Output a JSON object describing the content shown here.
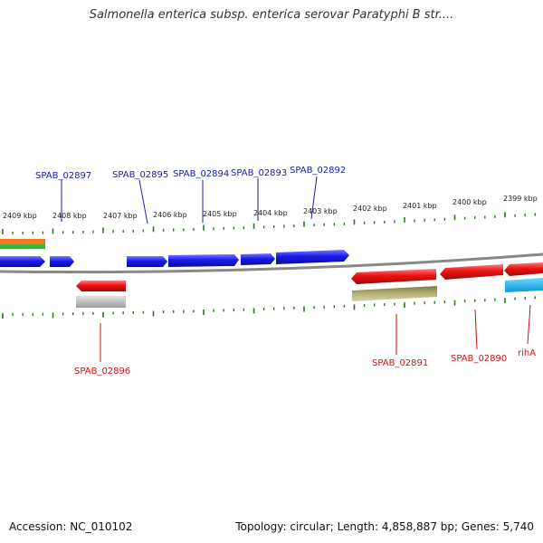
{
  "title": "Salmonella enterica subsp. enterica serovar Paratyphi B str....",
  "footer": {
    "accession": "Accession: NC_010102",
    "summary": "Topology: circular; Length: 4,858,887 bp; Genes: 5,740"
  },
  "colors": {
    "forward_gene": "#1a1aee",
    "reverse_gene": "#ee1111",
    "forward_label": "#1a1aaa",
    "reverse_label": "#cc1111",
    "backbone": "#888888",
    "tick": "#2a7a1a",
    "grey_feature": "#b4b4b4",
    "olive_feature": "#b4b078",
    "cyan_feature": "#18b4ee",
    "orange_feature": "#f07818",
    "green_feature": "#40b040"
  },
  "scale": {
    "tick_labels": [
      "2409 kbp",
      "2408 kbp",
      "2407 kbp",
      "2406 kbp",
      "2405 kbp",
      "2404 kbp",
      "2403 kbp",
      "2402 kbp",
      "2401 kbp",
      "2400 kbp",
      "2399 kbp"
    ]
  },
  "genes_forward": [
    {
      "name": "SPAB_02897"
    },
    {
      "name": "SPAB_02895"
    },
    {
      "name": "SPAB_02894"
    },
    {
      "name": "SPAB_02893"
    },
    {
      "name": "SPAB_02892"
    }
  ],
  "genes_reverse": [
    {
      "name": "SPAB_02896"
    },
    {
      "name": "SPAB_02891"
    },
    {
      "name": "SPAB_02890"
    },
    {
      "name": "rihA"
    }
  ]
}
